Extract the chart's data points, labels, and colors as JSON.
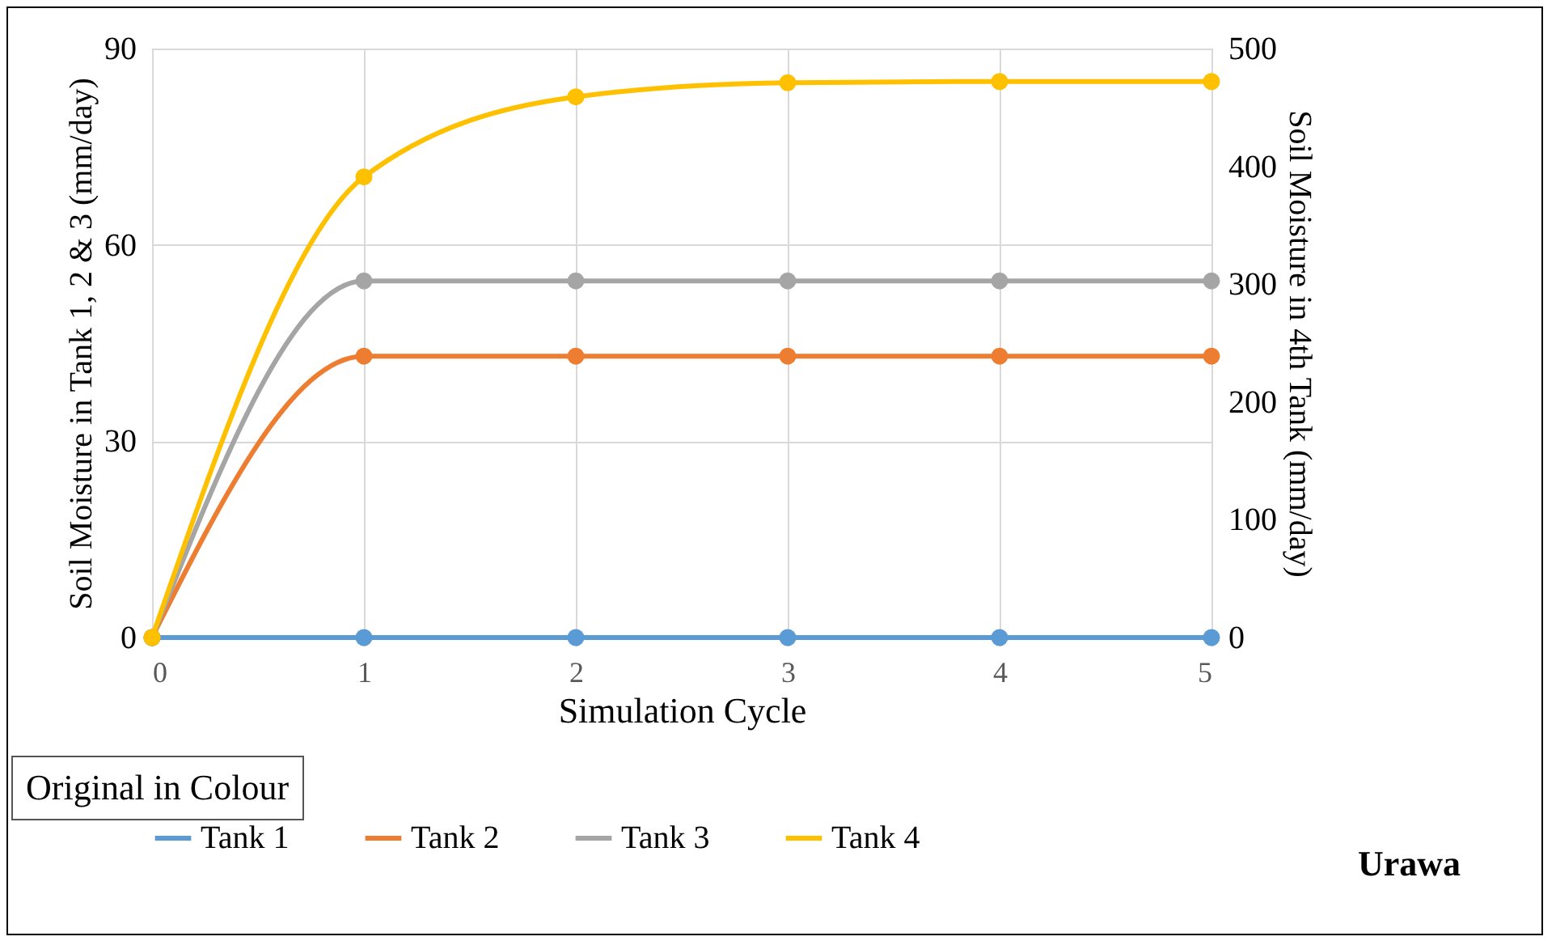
{
  "chart_data": {
    "type": "line",
    "xlabel": "Simulation Cycle",
    "ylabel": "Soil Moisture in Tank 1, 2 & 3 (mm/day)",
    "y2label": "Soil Moisture in 4th Tank (mm/day)",
    "x": [
      0,
      1,
      2,
      3,
      4,
      5
    ],
    "series": [
      {
        "name": "Tank 1",
        "color": "#5b9bd5",
        "values": [
          0,
          0,
          0,
          0,
          0,
          0
        ]
      },
      {
        "name": "Tank 2",
        "color": "#ed7d31",
        "values": [
          0,
          43,
          43,
          43,
          43,
          43
        ]
      },
      {
        "name": "Tank 3",
        "color": "#a5a5a5",
        "values": [
          0,
          54.5,
          54.5,
          54.5,
          54.5,
          54.5
        ]
      },
      {
        "name": "Tank 4",
        "color": "#ffc000",
        "axis": "y2",
        "values": [
          0,
          391,
          459,
          471,
          472,
          472
        ]
      }
    ],
    "xlim": [
      0,
      5
    ],
    "xticks": [
      0,
      1,
      2,
      3,
      4,
      5
    ],
    "ylim": [
      0,
      90
    ],
    "yticks": [
      0,
      30,
      60,
      90
    ],
    "y2lim": [
      0,
      500
    ],
    "y2ticks": [
      0,
      100,
      200,
      300,
      400,
      500
    ],
    "grid": true,
    "legend": "bottom",
    "marker": "circle",
    "line_style": "solid",
    "annotations": [
      "Original in Colour",
      "Urawa"
    ]
  }
}
